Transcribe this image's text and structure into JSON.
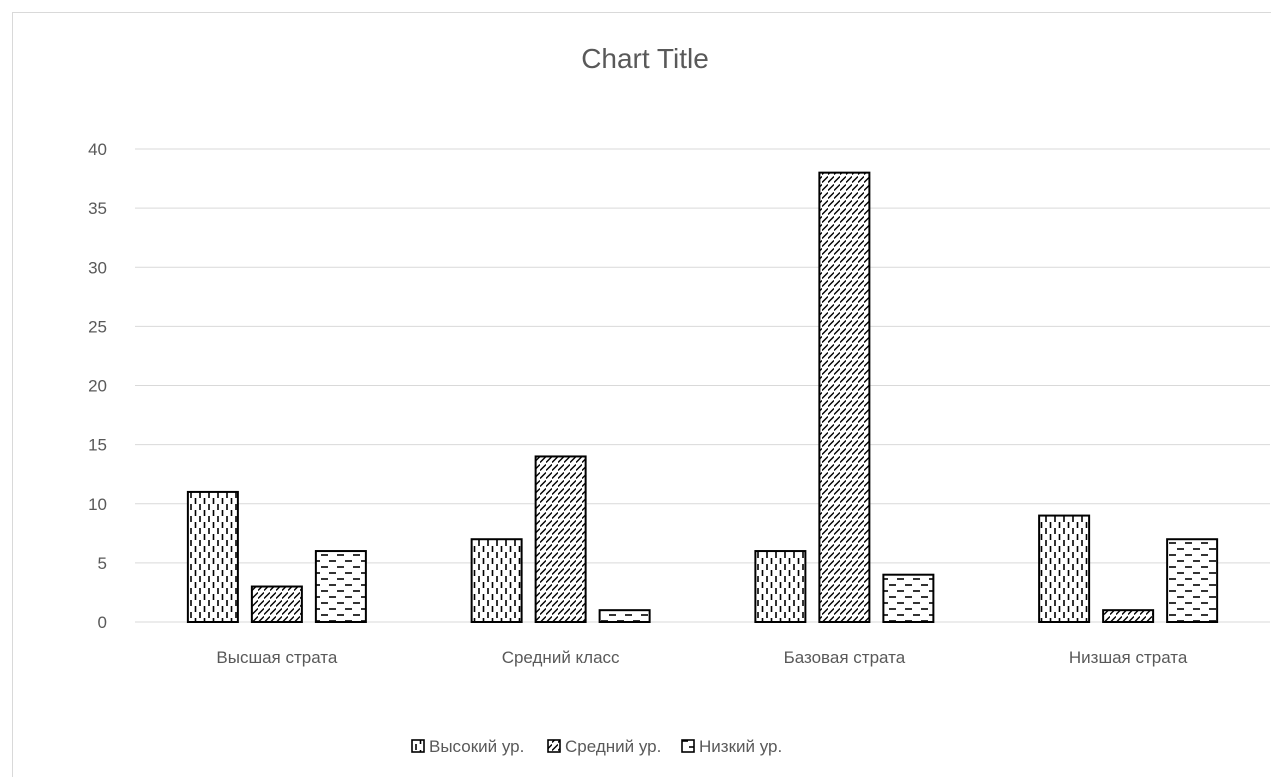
{
  "chart_data": {
    "type": "bar",
    "title": "Chart Title",
    "categories": [
      "Высшая страта",
      "Средний класс",
      "Базовая страта",
      "Низшая страта"
    ],
    "series": [
      {
        "name": "Высокий ур.",
        "values": [
          11,
          7,
          6,
          9
        ],
        "pattern": "dashed-vertical"
      },
      {
        "name": "Средний ур.",
        "values": [
          3,
          14,
          38,
          1
        ],
        "pattern": "wide-diagonal"
      },
      {
        "name": "Низкий ур.",
        "values": [
          6,
          1,
          4,
          7
        ],
        "pattern": "dashed-horizontal"
      }
    ],
    "ylim": [
      0,
      40
    ],
    "yticks": [
      0,
      5,
      10,
      15,
      20,
      25,
      30,
      35,
      40
    ],
    "grid": true,
    "legend_position": "bottom",
    "colors": {
      "gridline": "#d9d9d9",
      "text": "#595959",
      "bar_fill": "#ffffff",
      "bar_stroke": "#000000"
    }
  }
}
